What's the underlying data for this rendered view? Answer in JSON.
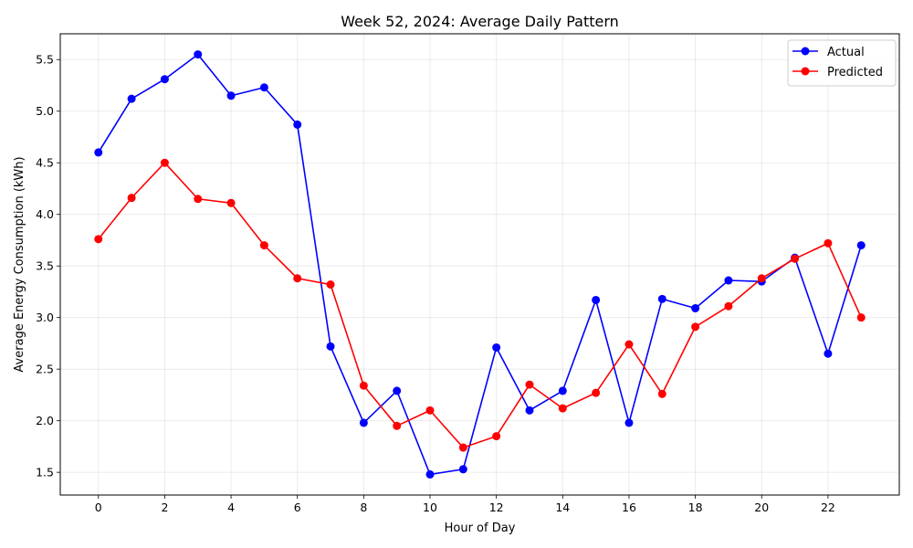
{
  "chart_data": {
    "type": "line",
    "title": "Week 52, 2024: Average Daily Pattern",
    "xlabel": "Hour of Day",
    "ylabel": "Average Energy Consumption (kWh)",
    "x": [
      0,
      1,
      2,
      3,
      4,
      5,
      6,
      7,
      8,
      9,
      10,
      11,
      12,
      13,
      14,
      15,
      16,
      17,
      18,
      19,
      20,
      21,
      22,
      23
    ],
    "xlim": [
      -1.15,
      24.15
    ],
    "ylim": [
      1.28,
      5.75
    ],
    "xticks": [
      0,
      2,
      4,
      6,
      8,
      10,
      12,
      14,
      16,
      18,
      20,
      22
    ],
    "yticks": [
      1.5,
      2.0,
      2.5,
      3.0,
      3.5,
      4.0,
      4.5,
      5.0,
      5.5
    ],
    "grid": true,
    "legend_position": "top-right",
    "series": [
      {
        "name": "Actual",
        "color": "#0000ff",
        "values": [
          4.6,
          5.12,
          5.31,
          5.55,
          5.15,
          5.23,
          4.87,
          2.72,
          1.98,
          2.29,
          1.48,
          1.53,
          2.71,
          2.1,
          2.29,
          3.17,
          1.98,
          3.18,
          3.09,
          3.36,
          3.35,
          3.58,
          2.65,
          3.7
        ]
      },
      {
        "name": "Predicted",
        "color": "#ff0000",
        "values": [
          3.76,
          4.16,
          4.5,
          4.15,
          4.11,
          3.7,
          3.38,
          3.32,
          2.34,
          1.95,
          2.1,
          1.74,
          1.85,
          2.35,
          2.12,
          2.27,
          2.74,
          2.26,
          2.91,
          3.11,
          3.38,
          3.57,
          3.72,
          3.0
        ]
      }
    ]
  }
}
